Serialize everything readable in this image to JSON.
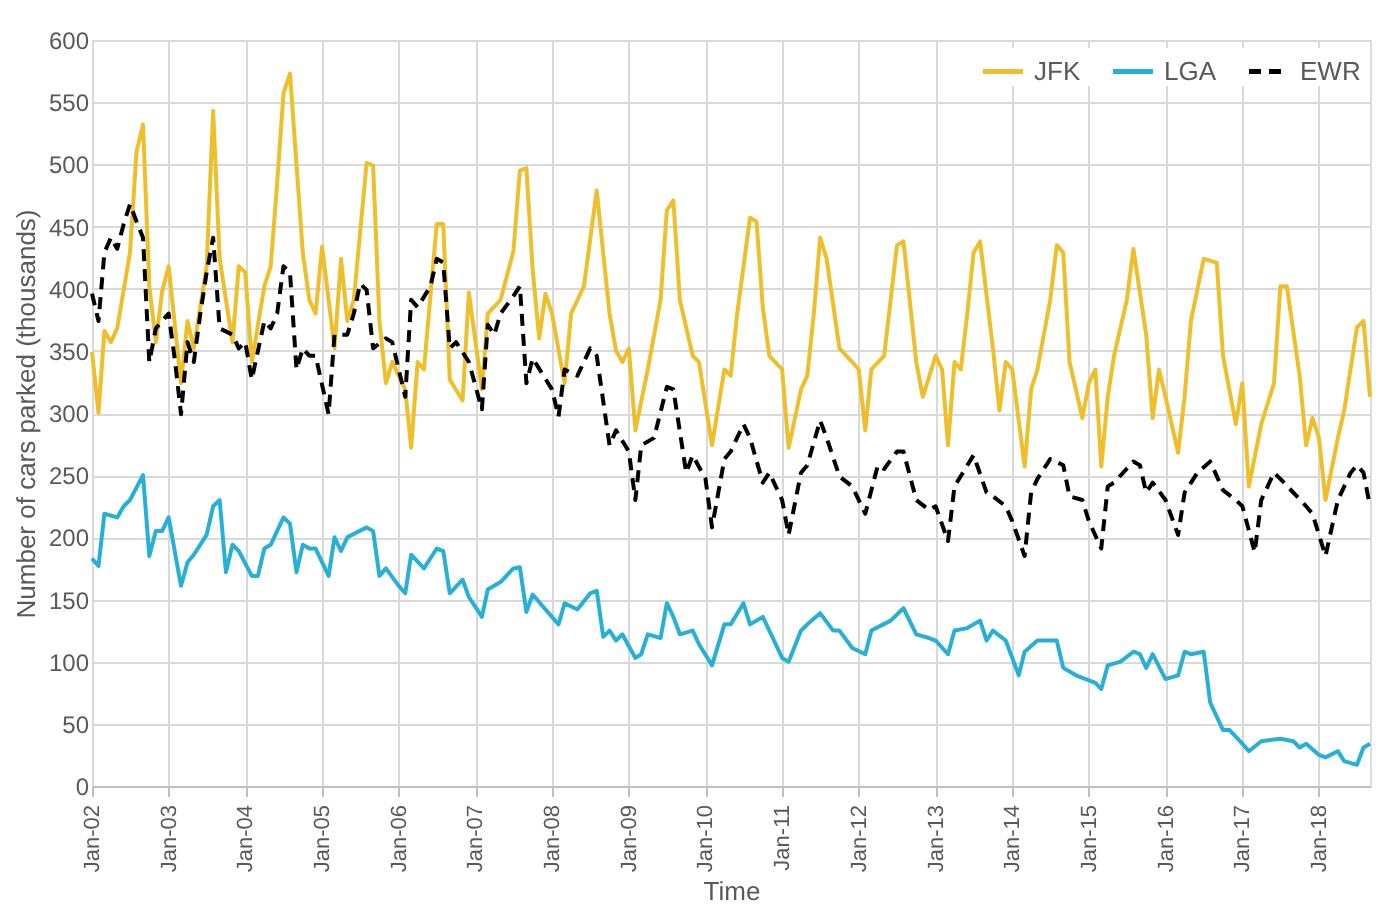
{
  "chart_data": {
    "type": "line",
    "xlabel": "Time",
    "ylabel": "Number of cars parked (thousands)",
    "xlim": [
      "2002-01",
      "2018-09"
    ],
    "ylim": [
      0,
      600
    ],
    "yticks": [
      0,
      50,
      100,
      150,
      200,
      250,
      300,
      350,
      400,
      450,
      500,
      550,
      600
    ],
    "xticks": [
      {
        "value": "2002-01",
        "label": "Jan-02"
      },
      {
        "value": "2003-01",
        "label": "Jan-03"
      },
      {
        "value": "2004-01",
        "label": "Jan-04"
      },
      {
        "value": "2005-01",
        "label": "Jan-05"
      },
      {
        "value": "2006-01",
        "label": "Jan-06"
      },
      {
        "value": "2007-01",
        "label": "Jan-07"
      },
      {
        "value": "2008-01",
        "label": "Jan-08"
      },
      {
        "value": "2009-01",
        "label": "Jan-09"
      },
      {
        "value": "2010-01",
        "label": "Jan-10"
      },
      {
        "value": "2011-01",
        "label": "Jan-11"
      },
      {
        "value": "2012-01",
        "label": "Jan-12"
      },
      {
        "value": "2013-01",
        "label": "Jan-13"
      },
      {
        "value": "2014-01",
        "label": "Jan-14"
      },
      {
        "value": "2015-01",
        "label": "Jan-15"
      },
      {
        "value": "2016-01",
        "label": "Jan-16"
      },
      {
        "value": "2017-01",
        "label": "Jan-17"
      },
      {
        "value": "2018-01",
        "label": "Jan-18"
      }
    ],
    "grid": true,
    "legend": "top right",
    "marker": "none",
    "series": [
      {
        "name": "JFK",
        "color": "#eebf2b",
        "line_style": "solid",
        "x": [
          "2002-01",
          "2002-02",
          "2002-03",
          "2002-04",
          "2002-05",
          "2002-07",
          "2002-08",
          "2002-09",
          "2002-10",
          "2002-11",
          "2002-12",
          "2003-01",
          "2003-03",
          "2003-04",
          "2003-05",
          "2003-07",
          "2003-08",
          "2003-09",
          "2003-11",
          "2003-12",
          "2004-01",
          "2004-02",
          "2004-04",
          "2004-05",
          "2004-06",
          "2004-07",
          "2004-08",
          "2004-10",
          "2004-11",
          "2004-12",
          "2005-01",
          "2005-03",
          "2005-04",
          "2005-05",
          "2005-06",
          "2005-08",
          "2005-09",
          "2005-10",
          "2005-11",
          "2005-12",
          "2006-02",
          "2006-03",
          "2006-04",
          "2006-05",
          "2006-07",
          "2006-08",
          "2006-09",
          "2006-11",
          "2006-12",
          "2007-02",
          "2007-03",
          "2007-05",
          "2007-07",
          "2007-08",
          "2007-09",
          "2007-10",
          "2007-11",
          "2007-12",
          "2008-01",
          "2008-03",
          "2008-04",
          "2008-06",
          "2008-08",
          "2008-10",
          "2008-11",
          "2008-12",
          "2009-01",
          "2009-02",
          "2009-04",
          "2009-06",
          "2009-07",
          "2009-08",
          "2009-09",
          "2009-11",
          "2009-12",
          "2010-02",
          "2010-04",
          "2010-05",
          "2010-06",
          "2010-08",
          "2010-09",
          "2010-10",
          "2010-11",
          "2011-01",
          "2011-02",
          "2011-04",
          "2011-05",
          "2011-06",
          "2011-07",
          "2011-08",
          "2011-10",
          "2011-12",
          "2012-01",
          "2012-02",
          "2012-03",
          "2012-05",
          "2012-07",
          "2012-08",
          "2012-10",
          "2012-11",
          "2013-01",
          "2013-02",
          "2013-03",
          "2013-04",
          "2013-05",
          "2013-06",
          "2013-07",
          "2013-08",
          "2013-10",
          "2013-11",
          "2013-12",
          "2014-01",
          "2014-03",
          "2014-04",
          "2014-05",
          "2014-07",
          "2014-08",
          "2014-09",
          "2014-10",
          "2014-12",
          "2015-01",
          "2015-02",
          "2015-03",
          "2015-04",
          "2015-05",
          "2015-07",
          "2015-08",
          "2015-10",
          "2015-11",
          "2015-12",
          "2016-01",
          "2016-03",
          "2016-04",
          "2016-05",
          "2016-07",
          "2016-09",
          "2016-10",
          "2016-12",
          "2017-01",
          "2017-02",
          "2017-04",
          "2017-06",
          "2017-07",
          "2017-08",
          "2017-10",
          "2017-11",
          "2017-12",
          "2018-01",
          "2018-02",
          "2018-04",
          "2018-05",
          "2018-07",
          "2018-08",
          "2018-09"
        ],
        "values": [
          349,
          300,
          366,
          357,
          368,
          429,
          510,
          532,
          402,
          357,
          398,
          418,
          324,
          374,
          352,
          418,
          543,
          424,
          357,
          418,
          413,
          341,
          402,
          418,
          485,
          557,
          573,
          429,
          391,
          380,
          434,
          352,
          424,
          374,
          391,
          501,
          499,
          374,
          324,
          341,
          319,
          272,
          341,
          335,
          452,
          452,
          327,
          310,
          397,
          319,
          380,
          391,
          430,
          495,
          497,
          415,
          360,
          396,
          380,
          324,
          380,
          402,
          479,
          380,
          350,
          341,
          352,
          286,
          335,
          391,
          463,
          471,
          391,
          346,
          341,
          274,
          335,
          330,
          380,
          457,
          454,
          385,
          346,
          335,
          272,
          319,
          330,
          380,
          441,
          424,
          352,
          341,
          335,
          286,
          335,
          346,
          435,
          438,
          341,
          313,
          346,
          335,
          274,
          341,
          335,
          380,
          429,
          438,
          352,
          302,
          341,
          335,
          257,
          319,
          335,
          391,
          435,
          429,
          341,
          296,
          324,
          335,
          257,
          313,
          346,
          391,
          432,
          363,
          296,
          335,
          313,
          268,
          313,
          374,
          424,
          421,
          346,
          291,
          324,
          241,
          291,
          324,
          402,
          402,
          330,
          274,
          296,
          280,
          230,
          280,
          302,
          369,
          374,
          313
        ]
      },
      {
        "name": "LGA",
        "color": "#27b0d6",
        "line_style": "solid",
        "x": [
          "2002-01",
          "2002-02",
          "2002-03",
          "2002-05",
          "2002-06",
          "2002-07",
          "2002-09",
          "2002-10",
          "2002-11",
          "2002-12",
          "2003-01",
          "2003-03",
          "2003-04",
          "2003-05",
          "2003-07",
          "2003-08",
          "2003-09",
          "2003-10",
          "2003-11",
          "2003-12",
          "2004-02",
          "2004-03",
          "2004-04",
          "2004-05",
          "2004-07",
          "2004-08",
          "2004-09",
          "2004-10",
          "2004-11",
          "2004-12",
          "2005-02",
          "2005-03",
          "2005-04",
          "2005-05",
          "2005-08",
          "2005-09",
          "2005-10",
          "2005-11",
          "2006-01",
          "2006-02",
          "2006-03",
          "2006-05",
          "2006-07",
          "2006-08",
          "2006-09",
          "2006-11",
          "2006-12",
          "2007-02",
          "2007-03",
          "2007-05",
          "2007-07",
          "2007-08",
          "2007-09",
          "2007-10",
          "2007-12",
          "2008-02",
          "2008-03",
          "2008-05",
          "2008-07",
          "2008-08",
          "2008-09",
          "2008-10",
          "2008-11",
          "2008-12",
          "2009-02",
          "2009-03",
          "2009-04",
          "2009-06",
          "2009-07",
          "2009-08",
          "2009-09",
          "2009-11",
          "2009-12",
          "2010-02",
          "2010-04",
          "2010-05",
          "2010-07",
          "2010-08",
          "2010-10",
          "2010-11",
          "2011-01",
          "2011-02",
          "2011-04",
          "2011-05",
          "2011-07",
          "2011-09",
          "2011-10",
          "2011-12",
          "2012-02",
          "2012-03",
          "2012-06",
          "2012-08",
          "2012-10",
          "2012-12",
          "2013-01",
          "2013-03",
          "2013-04",
          "2013-06",
          "2013-08",
          "2013-09",
          "2013-10",
          "2013-12",
          "2014-02",
          "2014-03",
          "2014-05",
          "2014-08",
          "2014-09",
          "2014-11",
          "2015-02",
          "2015-03",
          "2015-04",
          "2015-06",
          "2015-08",
          "2015-09",
          "2015-10",
          "2015-11",
          "2016-01",
          "2016-03",
          "2016-04",
          "2016-05",
          "2016-07",
          "2016-08",
          "2016-10",
          "2016-11",
          "2017-01",
          "2017-02",
          "2017-04",
          "2017-07",
          "2017-09",
          "2017-10",
          "2017-11",
          "2018-01",
          "2018-02",
          "2018-04",
          "2018-05",
          "2018-07",
          "2018-08",
          "2018-09"
        ],
        "values": [
          183,
          177,
          219,
          216,
          225,
          230,
          250,
          185,
          205,
          205,
          216,
          161,
          180,
          186,
          202,
          225,
          230,
          172,
          194,
          189,
          169,
          169,
          191,
          194,
          216,
          211,
          172,
          194,
          191,
          191,
          169,
          200,
          189,
          200,
          208,
          205,
          169,
          175,
          161,
          155,
          186,
          175,
          191,
          189,
          155,
          166,
          152,
          136,
          158,
          164,
          175,
          176,
          140,
          154,
          142,
          130,
          147,
          142,
          155,
          157,
          120,
          125,
          117,
          122,
          103,
          106,
          122,
          119,
          147,
          136,
          122,
          125,
          114,
          97,
          130,
          130,
          147,
          130,
          136,
          125,
          103,
          100,
          125,
          130,
          139,
          125,
          125,
          111,
          106,
          125,
          133,
          143,
          122,
          119,
          117,
          106,
          125,
          127,
          133,
          117,
          125,
          117,
          89,
          108,
          117,
          117,
          95,
          89,
          83,
          78,
          97,
          100,
          108,
          106,
          95,
          106,
          86,
          89,
          108,
          106,
          108,
          67,
          45,
          45,
          34,
          28,
          36,
          38,
          36,
          31,
          34,
          25,
          23,
          28,
          20,
          17,
          31,
          34
        ]
      },
      {
        "name": "EWR",
        "color": "#000000",
        "line_style": "dashed",
        "x": [
          "2002-01",
          "2002-02",
          "2002-03",
          "2002-04",
          "2002-05",
          "2002-06",
          "2002-07",
          "2002-08",
          "2002-09",
          "2002-10",
          "2002-11",
          "2002-12",
          "2003-01",
          "2003-02",
          "2003-03",
          "2003-04",
          "2003-05",
          "2003-06",
          "2003-07",
          "2003-08",
          "2003-09",
          "2003-11",
          "2003-12",
          "2004-01",
          "2004-02",
          "2004-04",
          "2004-05",
          "2004-06",
          "2004-07",
          "2004-08",
          "2004-09",
          "2004-10",
          "2004-11",
          "2004-12",
          "2005-02",
          "2005-03",
          "2005-05",
          "2005-06",
          "2005-07",
          "2005-08",
          "2005-09",
          "2005-11",
          "2005-12",
          "2006-02",
          "2006-03",
          "2006-04",
          "2006-06",
          "2006-07",
          "2006-08",
          "2006-09",
          "2006-10",
          "2006-12",
          "2007-02",
          "2007-03",
          "2007-04",
          "2007-05",
          "2007-07",
          "2007-08",
          "2007-09",
          "2007-10",
          "2008-01",
          "2008-02",
          "2008-03",
          "2008-05",
          "2008-07",
          "2008-08",
          "2008-10",
          "2008-11",
          "2009-01",
          "2009-02",
          "2009-03",
          "2009-05",
          "2009-07",
          "2009-08",
          "2009-10",
          "2009-11",
          "2010-01",
          "2010-02",
          "2010-04",
          "2010-05",
          "2010-07",
          "2010-08",
          "2010-10",
          "2010-11",
          "2011-01",
          "2011-02",
          "2011-04",
          "2011-05",
          "2011-07",
          "2011-08",
          "2011-10",
          "2011-12",
          "2012-02",
          "2012-04",
          "2012-05",
          "2012-07",
          "2012-08",
          "2012-10",
          "2012-12",
          "2013-01",
          "2013-03",
          "2013-04",
          "2013-06",
          "2013-07",
          "2013-09",
          "2013-10",
          "2013-12",
          "2014-01",
          "2014-03",
          "2014-04",
          "2014-05",
          "2014-07",
          "2014-09",
          "2014-10",
          "2014-12",
          "2015-01",
          "2015-03",
          "2015-04",
          "2015-05",
          "2015-08",
          "2015-09",
          "2015-10",
          "2015-11",
          "2016-01",
          "2016-03",
          "2016-04",
          "2016-06",
          "2016-08",
          "2016-10",
          "2016-12",
          "2017-01",
          "2017-03",
          "2017-04",
          "2017-06",
          "2017-07",
          "2017-09",
          "2017-11",
          "2017-12",
          "2018-02",
          "2018-04",
          "2018-06",
          "2018-07",
          "2018-08",
          "2018-09"
        ],
        "values": [
          396,
          374,
          429,
          441,
          432,
          452,
          468,
          454,
          441,
          341,
          368,
          374,
          380,
          341,
          299,
          357,
          341,
          380,
          413,
          441,
          368,
          363,
          352,
          357,
          327,
          374,
          368,
          380,
          418,
          413,
          335,
          352,
          346,
          346,
          299,
          363,
          363,
          380,
          404,
          399,
          352,
          360,
          357,
          313,
          391,
          385,
          402,
          424,
          421,
          352,
          357,
          341,
          303,
          371,
          363,
          380,
          394,
          402,
          324,
          344,
          319,
          297,
          335,
          330,
          352,
          346,
          274,
          286,
          269,
          230,
          274,
          280,
          321,
          319,
          252,
          266,
          247,
          208,
          263,
          269,
          291,
          280,
          244,
          252,
          230,
          202,
          252,
          258,
          294,
          280,
          249,
          241,
          219,
          258,
          255,
          269,
          269,
          230,
          222,
          225,
          197,
          241,
          258,
          266,
          236,
          233,
          225,
          213,
          185,
          236,
          247,
          263,
          258,
          233,
          230,
          213,
          191,
          241,
          244,
          261,
          258,
          236,
          244,
          230,
          202,
          236,
          252,
          261,
          238,
          230,
          225,
          188,
          230,
          252,
          247,
          236,
          225,
          219,
          185,
          230,
          252,
          258,
          252,
          225
        ]
      }
    ]
  }
}
